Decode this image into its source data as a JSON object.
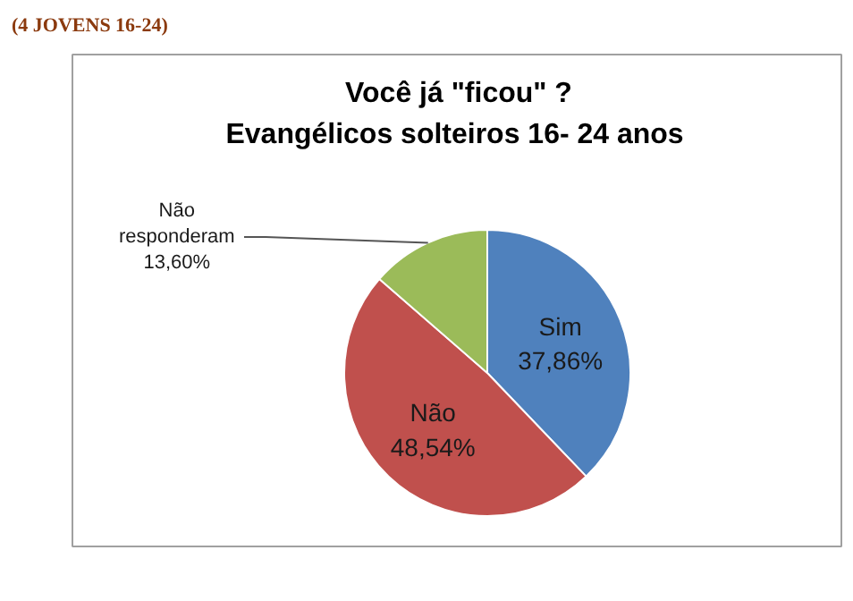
{
  "chart_data": {
    "type": "pie",
    "title": "Você já \"ficou\" ?",
    "subtitle": "Evangélicos solteiros  16- 24 anos",
    "categories": [
      "Sim",
      "Não",
      "Não responderam"
    ],
    "values": [
      37.86,
      48.54,
      13.6
    ],
    "value_labels": [
      "37,86%",
      "48,54%",
      "13,60%"
    ],
    "colors": [
      "#4f81bd",
      "#c0504d",
      "#9bbb59"
    ],
    "annotations": [
      "(4 JOVENS 16-24)"
    ]
  }
}
